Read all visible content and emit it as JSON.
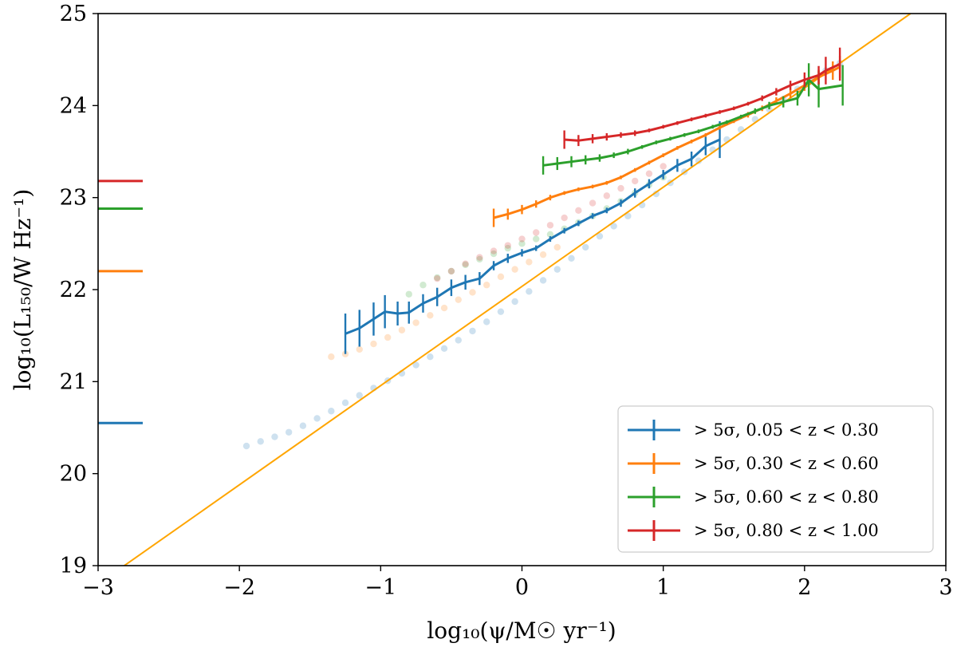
{
  "chart_data": {
    "type": "line",
    "title": "",
    "xlabel": "log₁₀(ψ/M☉ yr⁻¹)",
    "ylabel": "log₁₀(L₁₅₀/W Hz⁻¹)",
    "xlim": [
      -3,
      3
    ],
    "ylim": [
      19,
      25
    ],
    "xticks": [
      "−3",
      "−2",
      "−1",
      "0",
      "1",
      "2",
      "3"
    ],
    "yticks": [
      "19",
      "20",
      "21",
      "22",
      "23",
      "24",
      "25"
    ],
    "legend_position": "bottom-right",
    "reference_line": {
      "color": "#FFA500",
      "x": [
        -3,
        2.75
      ],
      "y": [
        18.8,
        25.0
      ]
    },
    "side_markers": [
      {
        "series": "blue",
        "y": 20.55,
        "color": "#1f77b4"
      },
      {
        "series": "orange",
        "y": 22.2,
        "color": "#ff7f0e"
      },
      {
        "series": "green",
        "y": 22.88,
        "color": "#2ca02c"
      },
      {
        "series": "red",
        "y": 23.18,
        "color": "#d62728"
      }
    ],
    "series": [
      {
        "name": "> 5σ, 0.05 < z < 0.30",
        "color": "#1f77b4",
        "x": [
          -1.25,
          -1.15,
          -1.05,
          -0.97,
          -0.88,
          -0.8,
          -0.7,
          -0.6,
          -0.5,
          -0.4,
          -0.3,
          -0.2,
          -0.1,
          0.0,
          0.1,
          0.2,
          0.3,
          0.4,
          0.5,
          0.6,
          0.7,
          0.8,
          0.9,
          1.0,
          1.1,
          1.2,
          1.3,
          1.4
        ],
        "y": [
          21.52,
          21.58,
          21.68,
          21.76,
          21.74,
          21.75,
          21.85,
          21.92,
          22.02,
          22.08,
          22.12,
          22.26,
          22.34,
          22.4,
          22.45,
          22.55,
          22.64,
          22.72,
          22.8,
          22.86,
          22.94,
          23.05,
          23.15,
          23.25,
          23.35,
          23.42,
          23.56,
          23.63
        ],
        "yerr": [
          0.22,
          0.2,
          0.18,
          0.18,
          0.13,
          0.12,
          0.1,
          0.1,
          0.09,
          0.08,
          0.07,
          0.05,
          0.05,
          0.04,
          0.03,
          0.03,
          0.03,
          0.03,
          0.03,
          0.03,
          0.04,
          0.05,
          0.05,
          0.05,
          0.07,
          0.08,
          0.1,
          0.2
        ],
        "faded_x": [
          -1.95,
          -1.85,
          -1.75,
          -1.65,
          -1.55,
          -1.45,
          -1.35,
          -1.25,
          -1.15,
          -1.05,
          -0.95,
          -0.85,
          -0.75,
          -0.65,
          -0.55,
          -0.45,
          -0.35,
          -0.25,
          -0.15,
          -0.05,
          0.05,
          0.15,
          0.25,
          0.35,
          0.45,
          0.55,
          0.65,
          0.75,
          0.85,
          0.95,
          1.05,
          1.15,
          1.25,
          1.35,
          1.45,
          1.55,
          1.65,
          1.75,
          1.85,
          1.95,
          2.05,
          2.15,
          2.25
        ],
        "faded_y": [
          20.3,
          20.35,
          20.4,
          20.45,
          20.52,
          20.6,
          20.68,
          20.77,
          20.85,
          20.93,
          21.01,
          21.09,
          21.18,
          21.27,
          21.36,
          21.45,
          21.55,
          21.65,
          21.76,
          21.87,
          21.98,
          22.1,
          22.22,
          22.34,
          22.46,
          22.58,
          22.69,
          22.8,
          22.92,
          23.04,
          23.16,
          23.28,
          23.4,
          23.52,
          23.63,
          23.74,
          23.85,
          23.96,
          24.07,
          24.18,
          24.28,
          24.38,
          24.46
        ]
      },
      {
        "name": "> 5σ, 0.30 < z < 0.60",
        "color": "#ff7f0e",
        "x": [
          -0.2,
          -0.1,
          0.0,
          0.1,
          0.2,
          0.3,
          0.4,
          0.5,
          0.6,
          0.7,
          0.8,
          0.9,
          1.0,
          1.1,
          1.2,
          1.3,
          1.4,
          1.5,
          1.6,
          1.7,
          1.8,
          1.9,
          2.0,
          2.1,
          2.2,
          2.25
        ],
        "y": [
          22.78,
          22.82,
          22.87,
          22.93,
          23.0,
          23.05,
          23.09,
          23.12,
          23.16,
          23.22,
          23.3,
          23.38,
          23.46,
          23.54,
          23.61,
          23.68,
          23.76,
          23.83,
          23.9,
          23.97,
          24.05,
          24.13,
          24.22,
          24.31,
          24.38,
          24.42
        ],
        "yerr": [
          0.1,
          0.06,
          0.05,
          0.04,
          0.03,
          0.02,
          0.02,
          0.02,
          0.02,
          0.02,
          0.02,
          0.02,
          0.02,
          0.02,
          0.02,
          0.02,
          0.02,
          0.02,
          0.03,
          0.03,
          0.04,
          0.05,
          0.06,
          0.08,
          0.1,
          0.12
        ],
        "faded_x": [
          -1.35,
          -1.25,
          -1.15,
          -1.05,
          -0.95,
          -0.85,
          -0.75,
          -0.65,
          -0.55,
          -0.45,
          -0.35,
          -0.25,
          -0.15,
          -0.05,
          0.05,
          0.15,
          0.25
        ],
        "faded_y": [
          21.27,
          21.3,
          21.35,
          21.41,
          21.48,
          21.56,
          21.64,
          21.72,
          21.8,
          21.89,
          21.97,
          22.05,
          22.14,
          22.22,
          22.3,
          22.38,
          22.46
        ]
      },
      {
        "name": "> 5σ, 0.60 < z < 0.80",
        "color": "#2ca02c",
        "x": [
          0.15,
          0.25,
          0.35,
          0.45,
          0.55,
          0.65,
          0.75,
          0.85,
          0.95,
          1.05,
          1.15,
          1.25,
          1.35,
          1.45,
          1.55,
          1.65,
          1.75,
          1.85,
          1.95,
          2.03,
          2.1,
          2.27
        ],
        "y": [
          23.35,
          23.37,
          23.39,
          23.41,
          23.43,
          23.46,
          23.5,
          23.55,
          23.6,
          23.64,
          23.68,
          23.72,
          23.77,
          23.82,
          23.88,
          23.94,
          24.0,
          24.04,
          24.08,
          24.28,
          24.18,
          24.22
        ],
        "yerr": [
          0.1,
          0.07,
          0.06,
          0.05,
          0.04,
          0.03,
          0.03,
          0.02,
          0.02,
          0.02,
          0.02,
          0.02,
          0.02,
          0.02,
          0.02,
          0.03,
          0.04,
          0.06,
          0.08,
          0.18,
          0.2,
          0.22
        ],
        "faded_x": [
          -0.8,
          -0.7,
          -0.6,
          -0.5,
          -0.4,
          -0.3,
          -0.2,
          -0.1,
          0.0,
          0.1,
          0.2,
          0.3,
          0.4,
          0.5,
          0.6,
          0.7,
          0.8,
          0.9,
          1.0
        ],
        "faded_y": [
          21.95,
          22.05,
          22.13,
          22.2,
          22.27,
          22.33,
          22.39,
          22.45,
          22.5,
          22.55,
          22.6,
          22.66,
          22.73,
          22.8,
          22.88,
          22.96,
          23.05,
          23.14,
          23.22
        ]
      },
      {
        "name": "> 5σ, 0.80 < z < 1.00",
        "color": "#d62728",
        "x": [
          0.3,
          0.4,
          0.5,
          0.6,
          0.7,
          0.8,
          0.9,
          1.0,
          1.1,
          1.2,
          1.3,
          1.4,
          1.5,
          1.6,
          1.7,
          1.8,
          1.9,
          2.0,
          2.1,
          2.15,
          2.25
        ],
        "y": [
          23.63,
          23.62,
          23.64,
          23.66,
          23.68,
          23.7,
          23.73,
          23.77,
          23.81,
          23.85,
          23.89,
          23.93,
          23.97,
          24.02,
          24.08,
          24.15,
          24.22,
          24.28,
          24.33,
          24.38,
          24.45
        ],
        "yerr": [
          0.1,
          0.06,
          0.05,
          0.04,
          0.03,
          0.03,
          0.02,
          0.02,
          0.02,
          0.02,
          0.02,
          0.02,
          0.02,
          0.02,
          0.03,
          0.04,
          0.05,
          0.08,
          0.1,
          0.15,
          0.18
        ],
        "faded_x": [
          -0.6,
          -0.5,
          -0.4,
          -0.3,
          -0.2,
          -0.1,
          0.0,
          0.1,
          0.2,
          0.3,
          0.4,
          0.5,
          0.6,
          0.7,
          0.8,
          0.9,
          1.0
        ],
        "faded_y": [
          22.12,
          22.2,
          22.28,
          22.35,
          22.42,
          22.48,
          22.55,
          22.62,
          22.7,
          22.78,
          22.86,
          22.94,
          23.02,
          23.1,
          23.18,
          23.26,
          23.34
        ]
      }
    ]
  }
}
